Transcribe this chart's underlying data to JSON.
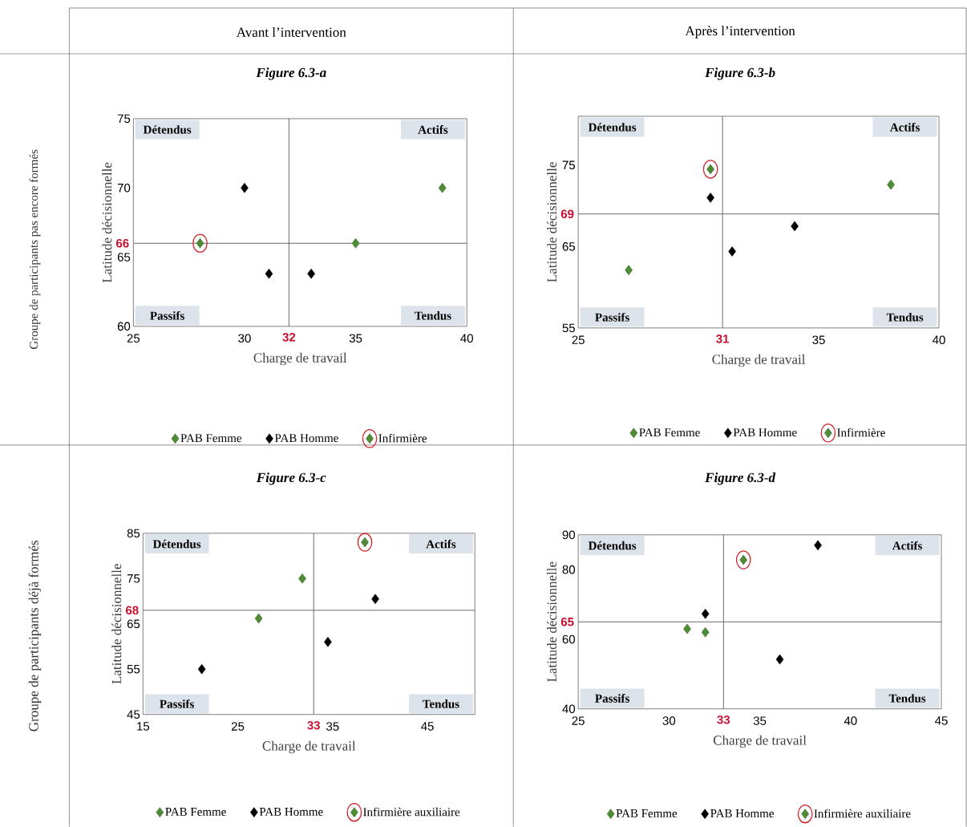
{
  "chart_data": [
    {
      "type": "scatter",
      "title": "Figure 6.3-a",
      "xlabel": "Charge de travail",
      "ylabel": "Latitude décisionnelle",
      "xlim": [
        25,
        40
      ],
      "ylim": [
        60,
        75
      ],
      "xticks": [
        25,
        30,
        35,
        40
      ],
      "yticks": [
        60,
        65,
        70,
        75
      ],
      "marker": "diamond",
      "legend": "bottom",
      "ref_lines": [
        {
          "axis": "x",
          "value": 32,
          "label": "32",
          "color": "#595959"
        },
        {
          "axis": "y",
          "value": 66,
          "label": "66",
          "color": "#595959"
        }
      ],
      "annotations": [
        "Détendus",
        "Actifs",
        "Passifs",
        "Tendus",
        "Avant l’intervention",
        "Groupe de participants pas encore formés"
      ],
      "series": [
        {
          "name": "PAB Femme",
          "color": "#4f8b34",
          "x": [
            35,
            38.9
          ],
          "values": [
            66,
            70
          ]
        },
        {
          "name": "PAB Homme",
          "color": "#000000",
          "x": [
            30,
            31.1,
            33
          ],
          "values": [
            70,
            63.8,
            63.8
          ]
        },
        {
          "name": "Infirmière",
          "color": "#d0262b",
          "colors": [
            "#4f8b34"
          ],
          "x": [
            28
          ],
          "values": [
            66
          ]
        }
      ]
    },
    {
      "type": "scatter",
      "title": "Figure 6.3-b",
      "xlabel": "Charge de travail",
      "ylabel": "Latitude décisionnelle",
      "xlim": [
        25,
        40
      ],
      "ylim": [
        55,
        81
      ],
      "xticks": [
        25,
        35,
        40
      ],
      "yticks": [
        55,
        65,
        75
      ],
      "marker": "diamond",
      "legend": "bottom",
      "ref_lines": [
        {
          "axis": "x",
          "value": 31,
          "label": "31",
          "color": "#595959"
        },
        {
          "axis": "y",
          "value": 69,
          "label": "69",
          "color": "#595959"
        }
      ],
      "annotations": [
        "Détendus",
        "Actifs",
        "Passifs",
        "Tendus",
        "Après l’intervention"
      ],
      "series": [
        {
          "name": "PAB Femme",
          "color": "#4f8b34",
          "x": [
            27.1,
            38
          ],
          "values": [
            62.1,
            72.6
          ]
        },
        {
          "name": "PAB Homme",
          "color": "#000000",
          "x": [
            30.5,
            31.4,
            34
          ],
          "values": [
            71,
            64.4,
            67.5
          ]
        },
        {
          "name": "Infirmière",
          "color": "#d0262b",
          "colors": [
            "#4f8b34"
          ],
          "x": [
            30.5
          ],
          "values": [
            74.5
          ]
        }
      ]
    },
    {
      "type": "scatter",
      "title": "Figure 6.3-c",
      "xlabel": "Charge de travail",
      "ylabel": "Latitude décisionnelle",
      "xlim": [
        15,
        50
      ],
      "ylim": [
        45,
        85
      ],
      "xticks": [
        15,
        25,
        35,
        45
      ],
      "yticks": [
        45,
        55,
        65,
        75,
        85
      ],
      "marker": "diamond",
      "legend": "bottom",
      "ref_lines": [
        {
          "axis": "x",
          "value": 33,
          "label": "33",
          "color": "#595959"
        },
        {
          "axis": "y",
          "value": 68,
          "label": "68",
          "color": "#595959"
        }
      ],
      "annotations": [
        "Détendus",
        "Actifs",
        "Passifs",
        "Tendus",
        "Groupe de participants déjà formés"
      ],
      "series": [
        {
          "name": "PAB Femme",
          "color": "#4f8b34",
          "x": [
            27.2,
            31.8
          ],
          "values": [
            66.2,
            75
          ]
        },
        {
          "name": "PAB Homme",
          "color": "#000000",
          "x": [
            21.2,
            34.5,
            39.5
          ],
          "values": [
            55,
            61,
            70.5
          ]
        },
        {
          "name": "Infirmière auxiliaire",
          "color": "#d0262b",
          "colors": [
            "#4f8b34"
          ],
          "x": [
            38.4
          ],
          "values": [
            83
          ]
        }
      ]
    },
    {
      "type": "scatter",
      "title": "Figure 6.3-d",
      "xlabel": "Charge de travail",
      "ylabel": "Latitude décisionnelle",
      "xlim": [
        25,
        45
      ],
      "ylim": [
        40,
        90
      ],
      "xticks": [
        25,
        30,
        35,
        40,
        45
      ],
      "yticks": [
        40,
        60,
        80,
        90
      ],
      "marker": "diamond",
      "legend": "bottom",
      "ref_lines": [
        {
          "axis": "x",
          "value": 33,
          "label": "33",
          "color": "#595959"
        },
        {
          "axis": "y",
          "value": 65,
          "label": "65",
          "color": "#595959"
        }
      ],
      "annotations": [
        "Détendus",
        "Actifs",
        "Passifs",
        "Tendus"
      ],
      "series": [
        {
          "name": "PAB Femme",
          "color": "#4f8b34",
          "x": [
            31,
            32
          ],
          "values": [
            63,
            62
          ]
        },
        {
          "name": "PAB Homme",
          "color": "#000000",
          "x": [
            32,
            36.1,
            38.2
          ],
          "values": [
            67.3,
            54.2,
            87
          ]
        },
        {
          "name": "Infirmière auxiliaire",
          "color": "#d0262b",
          "colors": [
            "#4f8b34"
          ],
          "x": [
            34.1
          ],
          "values": [
            82.8
          ]
        }
      ]
    }
  ]
}
